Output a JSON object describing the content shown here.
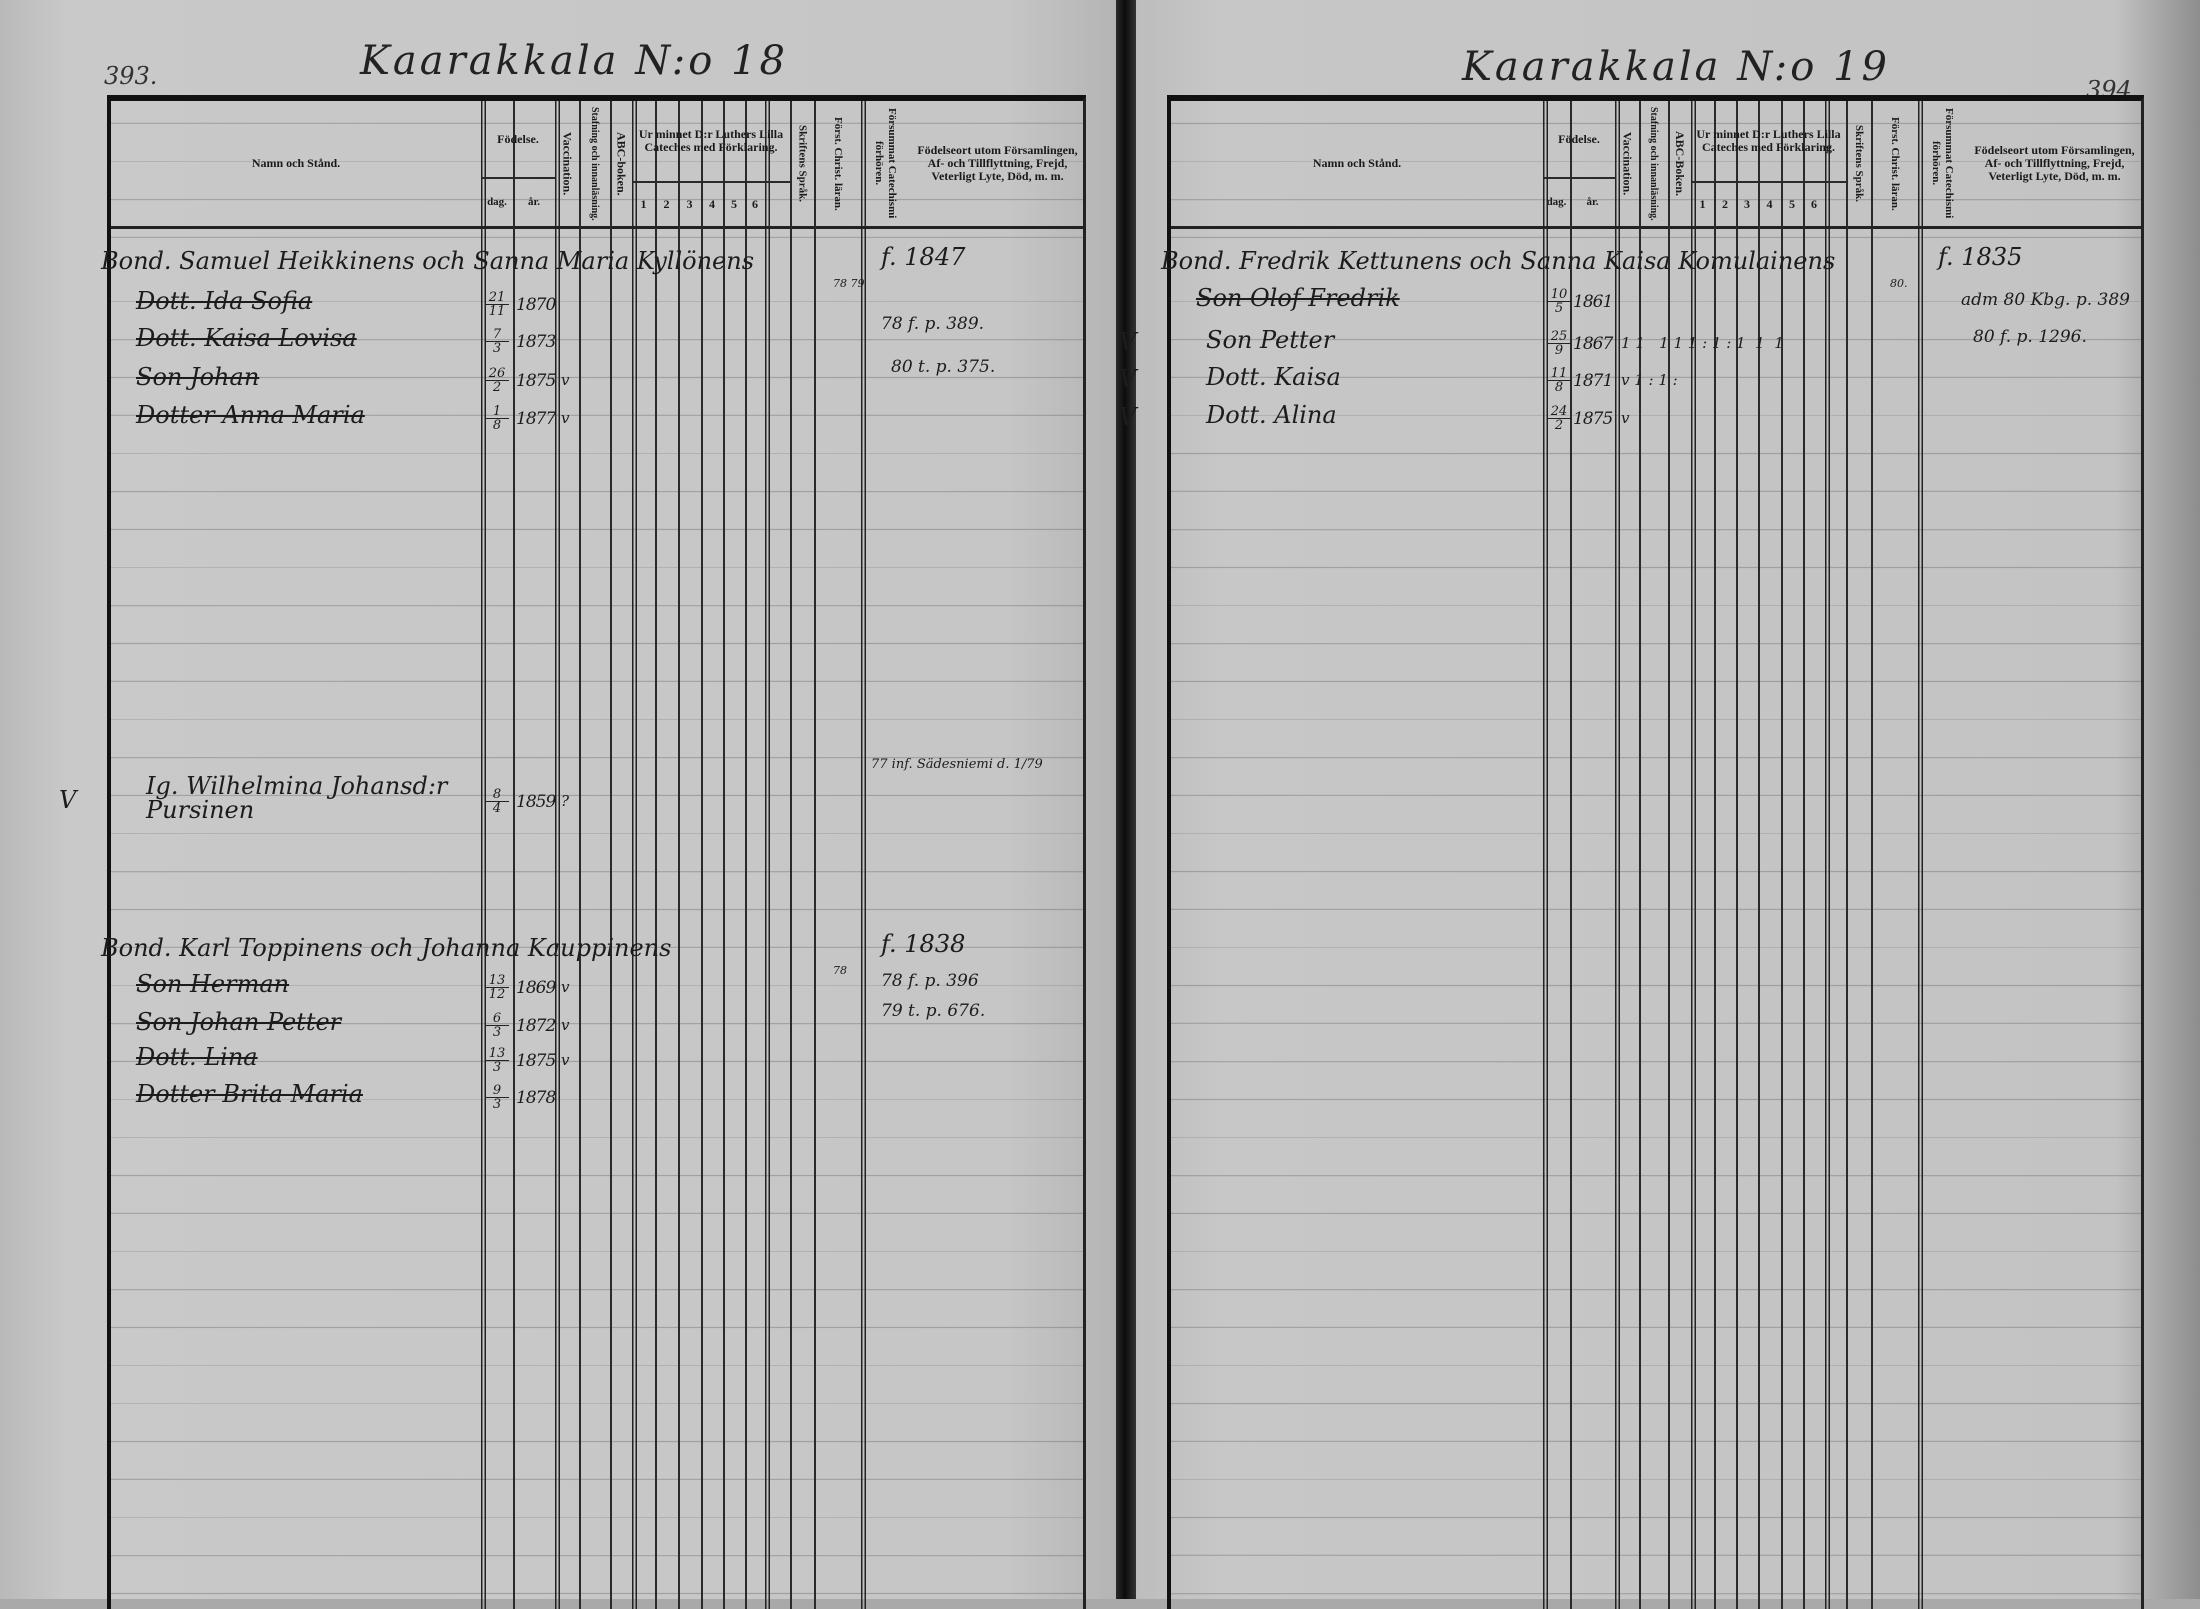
{
  "left_page": {
    "page_number": "393.",
    "title": "Kaarakkala N:o 18",
    "headers": {
      "name": "Namn och Stånd.",
      "birth": "Födelse.",
      "day": "dag.",
      "year": "år.",
      "vaccination": "Vaccination.",
      "reading": "Stafning och innanläsning.",
      "abc": "ABC-boken.",
      "catechism": "Ur minnet D:r Luthers Lilla Cateches med Förklaring.",
      "catechism_parts": [
        "1",
        "2",
        "3",
        "4",
        "5",
        "6"
      ],
      "scripture": "Skriftens Språk.",
      "christian": "Först. Christ. läran.",
      "missed": "Försummat Catechismi förhören.",
      "notes": "Födelseort utom Församlingen, Af- och Tillflyttning, Frejd, Veterligt Lyte, Död, m. m."
    },
    "entries": [
      {
        "name": "Bond. Samuel Heikkinens och Sanna Maria Kyllönens",
        "head": true,
        "born": "f. 1847",
        "margin": "78 79"
      },
      {
        "name": "Dott. Ida Sofia",
        "struck": true,
        "day": "21",
        "month": "11",
        "year": "1870",
        "marks": ""
      },
      {
        "name": "Dott. Kaisa Lovisa",
        "struck": true,
        "day": "7",
        "month": "3",
        "year": "1873",
        "marks": ""
      },
      {
        "name": "Son Johan",
        "struck": true,
        "day": "26",
        "month": "2",
        "year": "1875",
        "marks": "v"
      },
      {
        "name": "Dotter Anna Maria",
        "struck": true,
        "day": "1",
        "month": "8",
        "year": "1877",
        "marks": "v"
      },
      {
        "name": "Ig. Wilhelmina Johansd:r Pursinen",
        "check": "V",
        "day": "8",
        "month": "4",
        "year": "1859",
        "marks": "?"
      },
      {
        "name": "Bond. Karl Toppinens och Johanna Kauppinens",
        "head": true,
        "born": "f. 1838",
        "margin": "78"
      },
      {
        "name": "Son Herman",
        "struck": true,
        "day": "13",
        "month": "12",
        "year": "1869",
        "marks": "v"
      },
      {
        "name": "Son Johan Petter",
        "struck": true,
        "day": "6",
        "month": "3",
        "year": "1872",
        "marks": "v"
      },
      {
        "name": "Dott. Lina",
        "struck": true,
        "day": "13",
        "month": "3",
        "year": "1875",
        "marks": "v"
      },
      {
        "name": "Dotter Brita Maria",
        "struck": true,
        "day": "9",
        "month": "3",
        "year": "1878",
        "marks": ""
      }
    ],
    "notes": [
      "78 f. p. 389.",
      "80 t. p. 375.",
      "77 inf. Sädesniemi d. 1/79",
      "78 f. p. 396",
      "79 t. p. 676."
    ]
  },
  "right_page": {
    "page_number": "394.",
    "title": "Kaarakkala N:o 19",
    "headers": {
      "name": "Namn och Stånd.",
      "birth": "Födelse.",
      "day": "dag.",
      "year": "år.",
      "vaccination": "Vaccination.",
      "reading": "Stafning och innanläsning.",
      "abc": "ABC-Boken.",
      "catechism": "Ur minnet D:r Luthers Lilla Cateches med Förklaring.",
      "catechism_parts": [
        "1",
        "2",
        "3",
        "4",
        "5",
        "6"
      ],
      "scripture": "Skriftens Språk.",
      "christian": "Först. Christ. läran.",
      "missed": "Försummat Catechismi förhören.",
      "notes": "Födelseort utom Församlingen, Af- och Tillflyttning, Frejd, Veterligt Lyte, Död, m. m."
    },
    "entries": [
      {
        "name": "Bond. Fredrik Kettunens och Sanna Kaisa Komulainens",
        "head": true,
        "born": "f. 1835",
        "margin": "80."
      },
      {
        "name": "Son Olof Fredrik",
        "struck": true,
        "day": "10",
        "month": "5",
        "year": "1861",
        "marks": ""
      },
      {
        "name": "Son Petter",
        "check": "V",
        "day": "25",
        "month": "9",
        "year": "1867",
        "marks": "1 1   1 1 1 : 1 : 1  1  1"
      },
      {
        "name": "Dott. Kaisa",
        "check": "V",
        "day": "11",
        "month": "8",
        "year": "1871",
        "marks": "v 1 : 1 :"
      },
      {
        "name": "Dott. Alina",
        "check": "V",
        "day": "24",
        "month": "2",
        "year": "1875",
        "marks": "v"
      }
    ],
    "notes": [
      "adm 80 Kbg. p. 389",
      "80 f. p. 1296."
    ]
  }
}
